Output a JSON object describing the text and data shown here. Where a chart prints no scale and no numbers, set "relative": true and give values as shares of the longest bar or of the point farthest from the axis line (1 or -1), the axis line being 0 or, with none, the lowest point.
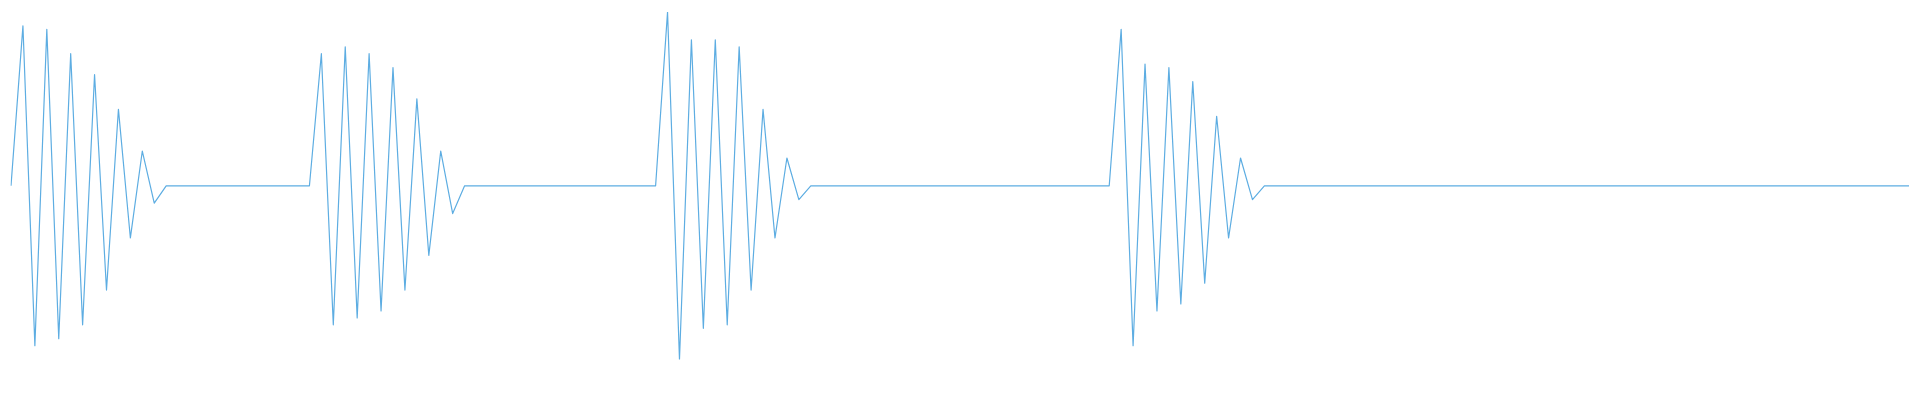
{
  "chart_data": {
    "type": "line",
    "relative": true,
    "grid": false,
    "legend": false,
    "marker": "none",
    "line_style": "solid",
    "categories": [
      null,
      null,
      null,
      null,
      null,
      null,
      null,
      null,
      null,
      null,
      null,
      null,
      null,
      null,
      null,
      null,
      null,
      null,
      null,
      null,
      null,
      null,
      null,
      null,
      null,
      null,
      null,
      null,
      null,
      null,
      null,
      null,
      null,
      null,
      null,
      null,
      null,
      null,
      null,
      null,
      null,
      null,
      null,
      null,
      null,
      null,
      null,
      null,
      null,
      null,
      null,
      null,
      null,
      null,
      null,
      null,
      null,
      null,
      null,
      null,
      null,
      null,
      null,
      null,
      null,
      null,
      null,
      null,
      null,
      null,
      null,
      null,
      null,
      null,
      null,
      null,
      null,
      null,
      null,
      null,
      null,
      null,
      null,
      null,
      null,
      null,
      null,
      null,
      null,
      null,
      null,
      null,
      null,
      null,
      null,
      null,
      null,
      null,
      null,
      null,
      null,
      null,
      null,
      null,
      null,
      null,
      null,
      null,
      null,
      null,
      null,
      null,
      null,
      null,
      null,
      null,
      null,
      null,
      null,
      null,
      null,
      null,
      null,
      null,
      null,
      null,
      null,
      null,
      null,
      null,
      null,
      null,
      null,
      null,
      null,
      null,
      null,
      null,
      null,
      null,
      null,
      null,
      null,
      null,
      null,
      null,
      null,
      null,
      null,
      null,
      null,
      null,
      null,
      null,
      null,
      null,
      null,
      null,
      null,
      null
    ],
    "series": [
      {
        "color": "#5dade2",
        "values": [
          0.5,
          0.96,
          0.04,
          0.95,
          0.06,
          0.88,
          0.1,
          0.82,
          0.2,
          0.72,
          0.35,
          0.6,
          0.45,
          0.5,
          0.5,
          0.5,
          0.5,
          0.5,
          0.5,
          0.5,
          0.5,
          0.5,
          0.5,
          0.5,
          0.5,
          0.5,
          0.88,
          0.1,
          0.9,
          0.12,
          0.88,
          0.14,
          0.84,
          0.2,
          0.75,
          0.3,
          0.6,
          0.42,
          0.5,
          0.5,
          0.5,
          0.5,
          0.5,
          0.5,
          0.5,
          0.5,
          0.5,
          0.5,
          0.5,
          0.5,
          0.5,
          0.5,
          0.5,
          0.5,
          0.5,
          1,
          0,
          0.92,
          0.09,
          0.92,
          0.1,
          0.9,
          0.2,
          0.72,
          0.35,
          0.58,
          0.46,
          0.5,
          0.5,
          0.5,
          0.5,
          0.5,
          0.5,
          0.5,
          0.5,
          0.5,
          0.5,
          0.5,
          0.5,
          0.5,
          0.5,
          0.5,
          0.5,
          0.5,
          0.5,
          0.5,
          0.5,
          0.5,
          0.5,
          0.5,
          0.5,
          0.5,
          0.5,
          0.95,
          0.04,
          0.85,
          0.14,
          0.84,
          0.16,
          0.8,
          0.22,
          0.7,
          0.35,
          0.58,
          0.46,
          0.5,
          0.5,
          0.5,
          0.5,
          0.5,
          0.5,
          0.5,
          0.5,
          0.5,
          0.5,
          0.5,
          0.5,
          0.5,
          0.5,
          0.5,
          0.5,
          0.5,
          0.5,
          0.5,
          0.5,
          0.5,
          0.5,
          0.5,
          0.5,
          0.5,
          0.5,
          0.5,
          0.5,
          0.5,
          0.5,
          0.5,
          0.5,
          0.5,
          0.5,
          0.5,
          0.5,
          0.5,
          0.5,
          0.5,
          0.5,
          0.5,
          0.5,
          0.5,
          0.5,
          0.5,
          0.5,
          0.5,
          0.5,
          0.5,
          0.5,
          0.5,
          0.5,
          0.5,
          0.5,
          0.5
        ]
      }
    ]
  }
}
